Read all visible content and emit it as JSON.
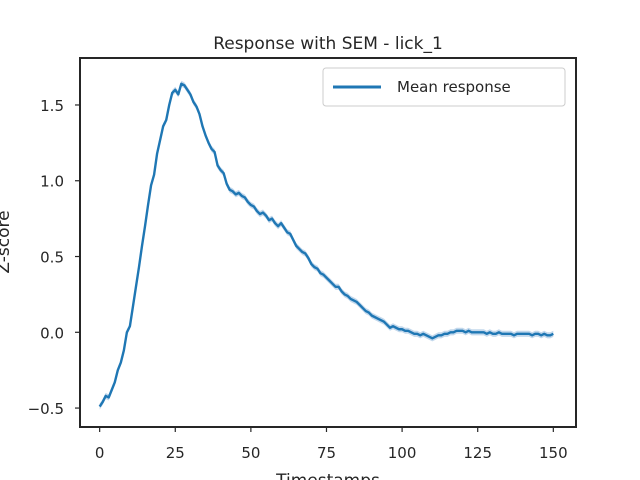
{
  "chart_data": {
    "type": "line",
    "title": "Response with SEM - lick_1",
    "xlabel": "Timestamps",
    "ylabel": "Z-score",
    "xlim": [
      -6.5,
      157.5
    ],
    "ylim": [
      -0.625,
      1.81
    ],
    "xticks": [
      0,
      25,
      50,
      75,
      100,
      125,
      150
    ],
    "yticks": [
      -0.5,
      0.0,
      0.5,
      1.0,
      1.5
    ],
    "xtick_labels": [
      "0",
      "25",
      "50",
      "75",
      "100",
      "125",
      "150"
    ],
    "ytick_labels": [
      "−0.5",
      "0.0",
      "0.5",
      "1.0",
      "1.5"
    ],
    "grid": false,
    "legend_position": "top-right",
    "colors": {
      "line": "#1f77b4",
      "band": "#a9c8e4",
      "axes": "#262626"
    },
    "series": [
      {
        "name": "Mean response",
        "x": [
          0,
          1,
          2,
          3,
          4,
          5,
          6,
          7,
          8,
          9,
          10,
          11,
          12,
          13,
          14,
          15,
          16,
          17,
          18,
          19,
          20,
          21,
          22,
          23,
          24,
          25,
          26,
          27,
          28,
          29,
          30,
          31,
          32,
          33,
          34,
          35,
          36,
          37,
          38,
          39,
          40,
          41,
          42,
          43,
          44,
          45,
          46,
          47,
          48,
          49,
          50,
          51,
          52,
          53,
          54,
          55,
          56,
          57,
          58,
          59,
          60,
          61,
          62,
          63,
          64,
          65,
          66,
          67,
          68,
          69,
          70,
          71,
          72,
          73,
          74,
          75,
          76,
          77,
          78,
          79,
          80,
          81,
          82,
          83,
          84,
          85,
          86,
          87,
          88,
          89,
          90,
          91,
          92,
          93,
          94,
          95,
          96,
          97,
          98,
          99,
          100,
          101,
          102,
          103,
          104,
          105,
          106,
          107,
          108,
          109,
          110,
          111,
          112,
          113,
          114,
          115,
          116,
          117,
          118,
          119,
          120,
          121,
          122,
          123,
          124,
          125,
          126,
          127,
          128,
          129,
          130,
          131,
          132,
          133,
          134,
          135,
          136,
          137,
          138,
          139,
          140,
          141,
          142,
          143,
          144,
          145,
          146,
          147,
          148,
          149,
          150
        ],
        "values": [
          -0.49,
          -0.46,
          -0.42,
          -0.43,
          -0.38,
          -0.33,
          -0.25,
          -0.2,
          -0.12,
          0.0,
          0.04,
          0.17,
          0.3,
          0.43,
          0.57,
          0.7,
          0.84,
          0.97,
          1.04,
          1.18,
          1.27,
          1.36,
          1.4,
          1.5,
          1.58,
          1.6,
          1.57,
          1.64,
          1.63,
          1.6,
          1.57,
          1.52,
          1.49,
          1.44,
          1.36,
          1.3,
          1.25,
          1.21,
          1.19,
          1.1,
          1.07,
          1.05,
          0.98,
          0.94,
          0.93,
          0.91,
          0.92,
          0.9,
          0.89,
          0.86,
          0.84,
          0.83,
          0.8,
          0.78,
          0.79,
          0.77,
          0.74,
          0.75,
          0.72,
          0.7,
          0.72,
          0.69,
          0.66,
          0.65,
          0.61,
          0.57,
          0.55,
          0.53,
          0.52,
          0.49,
          0.45,
          0.43,
          0.42,
          0.39,
          0.38,
          0.36,
          0.34,
          0.32,
          0.3,
          0.3,
          0.27,
          0.25,
          0.24,
          0.22,
          0.21,
          0.2,
          0.18,
          0.16,
          0.14,
          0.13,
          0.11,
          0.1,
          0.09,
          0.08,
          0.07,
          0.05,
          0.03,
          0.04,
          0.03,
          0.02,
          0.02,
          0.01,
          0.01,
          0.0,
          -0.01,
          -0.01,
          -0.02,
          -0.01,
          -0.02,
          -0.03,
          -0.04,
          -0.03,
          -0.02,
          -0.02,
          -0.01,
          -0.01,
          0.0,
          0.0,
          0.01,
          0.01,
          0.01,
          0.0,
          0.01,
          0.0,
          0.0,
          0.0,
          0.0,
          0.0,
          -0.01,
          0.0,
          -0.01,
          -0.01,
          0.0,
          -0.01,
          -0.01,
          -0.01,
          -0.01,
          -0.02,
          -0.01,
          -0.01,
          -0.01,
          -0.01,
          -0.01,
          -0.02,
          -0.01,
          -0.01,
          -0.02,
          -0.01,
          -0.02,
          -0.02,
          -0.01
        ],
        "sem": 0.02
      }
    ]
  }
}
